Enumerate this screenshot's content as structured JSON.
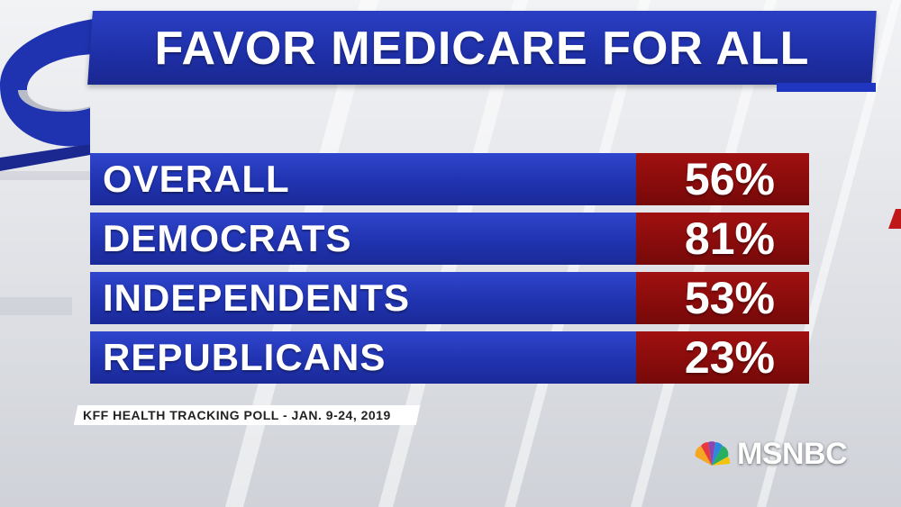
{
  "title": "FAVOR MEDICARE FOR ALL",
  "source": "KFF HEALTH TRACKING POLL - JAN. 9-24, 2019",
  "logo": {
    "text": "MSNBC",
    "icon": "peacock-icon"
  },
  "colors": {
    "label_bar": "#2033b0",
    "value_bar": "#8a0c0c",
    "text": "#ffffff"
  },
  "chart_data": {
    "type": "table",
    "title": "FAVOR MEDICARE FOR ALL",
    "categories": [
      "OVERALL",
      "DEMOCRATS",
      "INDEPENDENTS",
      "REPUBLICANS"
    ],
    "values": [
      56,
      81,
      53,
      23
    ],
    "value_labels": [
      "56%",
      "81%",
      "53%",
      "23%"
    ],
    "unit": "%"
  }
}
